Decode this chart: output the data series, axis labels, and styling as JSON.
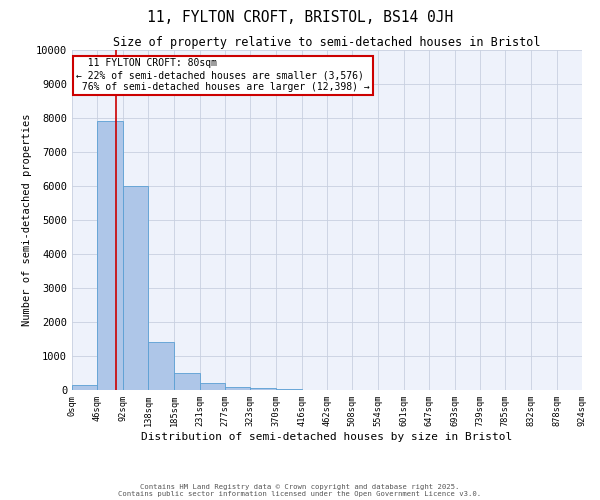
{
  "title": "11, FYLTON CROFT, BRISTOL, BS14 0JH",
  "subtitle": "Size of property relative to semi-detached houses in Bristol",
  "xlabel": "Distribution of semi-detached houses by size in Bristol",
  "ylabel": "Number of semi-detached properties",
  "property_size": 80,
  "property_label": "11 FYLTON CROFT: 80sqm",
  "pct_smaller": 22,
  "pct_larger": 76,
  "n_smaller": 3576,
  "n_larger": 12398,
  "bin_edges": [
    0,
    46,
    92,
    138,
    185,
    231,
    277,
    323,
    370,
    416,
    462,
    508,
    554,
    601,
    647,
    693,
    739,
    785,
    832,
    878,
    924
  ],
  "bar_heights": [
    150,
    7900,
    6000,
    1400,
    500,
    200,
    100,
    50,
    20,
    8,
    5,
    3,
    2,
    1,
    1,
    1,
    0,
    0,
    0,
    0
  ],
  "bar_color": "#aec6e8",
  "bar_edgecolor": "#5a9fd4",
  "red_line_color": "#cc0000",
  "annotation_box_color": "#cc0000",
  "grid_color": "#c8d0e0",
  "background_color": "#eef2fb",
  "ylim": [
    0,
    10000
  ],
  "yticks": [
    0,
    1000,
    2000,
    3000,
    4000,
    5000,
    6000,
    7000,
    8000,
    9000,
    10000
  ],
  "footnote1": "Contains HM Land Registry data © Crown copyright and database right 2025.",
  "footnote2": "Contains public sector information licensed under the Open Government Licence v3.0."
}
